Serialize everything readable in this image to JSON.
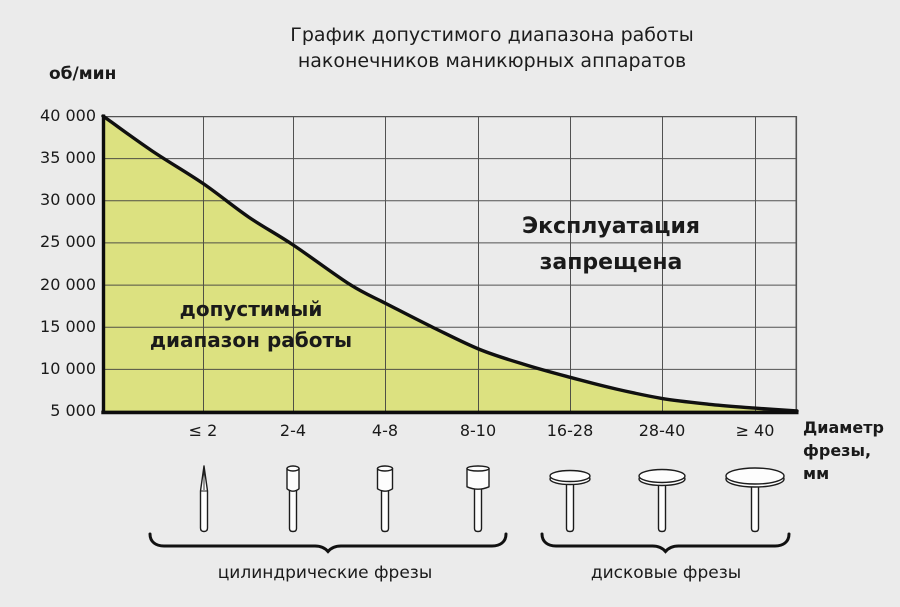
{
  "page": {
    "background": "#ebebeb",
    "text_color": "#1a1a1a"
  },
  "title": {
    "lines": [
      "График допустимого диапазона работы",
      "наконечников маникюрных аппаратов"
    ]
  },
  "chart_data": {
    "type": "area",
    "title": "График допустимого диапазона работы наконечников маникюрных аппаратов",
    "ylabel": "об/мин",
    "xlabel": "Диаметр фрезы, мм",
    "xlabel_lines": [
      "Диаметр",
      "фрезы, мм"
    ],
    "ylim": [
      5000,
      40000
    ],
    "y_tick_values": [
      40000,
      35000,
      30000,
      25000,
      20000,
      15000,
      10000,
      5000
    ],
    "y_tick_labels": [
      "40 000",
      "35 000",
      "30 000",
      "25 000",
      "20 000",
      "15 000",
      "10 000",
      "5 000"
    ],
    "categories": [
      "≤ 2",
      "2-4",
      "4-8",
      "8-10",
      "16-28",
      "28-40",
      "≥ 40"
    ],
    "grid": true,
    "legend_position": "none",
    "boundary_curve": {
      "note": "max allowed RPM vs cutter diameter; t = horizontal fraction of plot width, rpm = об/мин",
      "points": [
        [
          0,
          40000
        ],
        [
          0.07,
          35900
        ],
        [
          0.144,
          32000
        ],
        [
          0.21,
          28000
        ],
        [
          0.274,
          24700
        ],
        [
          0.356,
          20000
        ],
        [
          0.409,
          17700
        ],
        [
          0.476,
          14900
        ],
        [
          0.543,
          12300
        ],
        [
          0.608,
          10500
        ],
        [
          0.673,
          9000
        ],
        [
          0.74,
          7600
        ],
        [
          0.805,
          6500
        ],
        [
          0.873,
          5800
        ],
        [
          0.939,
          5350
        ],
        [
          1,
          5000
        ]
      ]
    },
    "regions": {
      "allowed_label_lines": [
        "допустимый",
        "диапазон работы"
      ],
      "forbidden_label_lines": [
        "Эксплуатация",
        "запрещена"
      ]
    },
    "colors": {
      "allowed_fill": "#dce180",
      "grid_line": "#3d3d3d",
      "curve": "#101010",
      "axis": "#0d0d0d",
      "plot_background": "#ebebeb"
    }
  },
  "bits": {
    "icons": [
      "needle-bit-icon",
      "cylinder-bit-small-icon",
      "cylinder-bit-medium-icon",
      "cylinder-bit-large-icon",
      "disc-bit-small-icon",
      "disc-bit-medium-icon",
      "disc-bit-large-icon"
    ],
    "groups": [
      {
        "label": "цилиндрические фрезы"
      },
      {
        "label": "дисковые фрезы"
      }
    ]
  }
}
